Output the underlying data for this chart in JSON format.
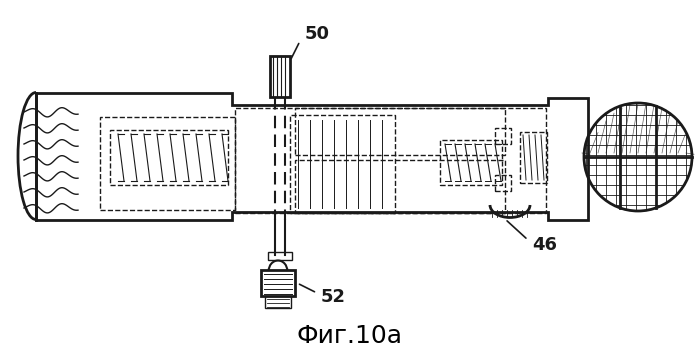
{
  "title": "Фиг.10a",
  "title_fontsize": 18,
  "background_color": "#ffffff",
  "line_color": "#1a1a1a",
  "label_50": "50",
  "label_46": "46",
  "label_52": "52",
  "figsize": [
    7.0,
    3.52
  ],
  "dpi": 100
}
